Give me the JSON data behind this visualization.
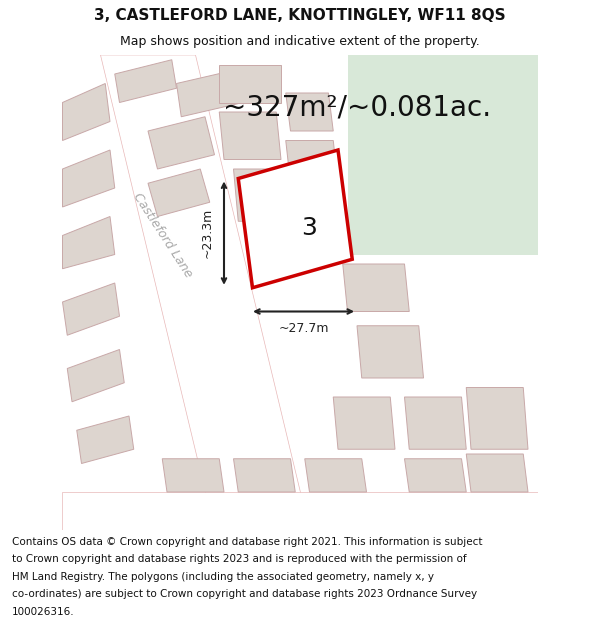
{
  "title_line1": "3, CASTLEFORD LANE, KNOTTINGLEY, WF11 8QS",
  "title_line2": "Map shows position and indicative extent of the property.",
  "footer_lines": [
    "Contains OS data © Crown copyright and database right 2021. This information is subject",
    "to Crown copyright and database rights 2023 and is reproduced with the permission of",
    "HM Land Registry. The polygons (including the associated geometry, namely x, y",
    "co-ordinates) are subject to Crown copyright and database rights 2023 Ordnance Survey",
    "100026316."
  ],
  "area_text": "~327m²/~0.081ac.",
  "label_text": "3",
  "dim_width": "~27.7m",
  "dim_height": "~23.3m",
  "street_label": "Castleford Lane",
  "map_bg": "#ede8e4",
  "green_area": "#d8e8d8",
  "road_fill": "#ffffff",
  "road_outline": "#e8b8b8",
  "building_fill": "#ddd5cf",
  "building_outline": "#c8a8a8",
  "plot_fill": "#ffffff",
  "plot_outline": "#cc0000",
  "dim_color": "#222222",
  "title_fontsize": 11,
  "subtitle_fontsize": 9,
  "footer_fontsize": 7.5,
  "area_fontsize": 20,
  "label_fontsize": 18,
  "street_fontsize": 9
}
